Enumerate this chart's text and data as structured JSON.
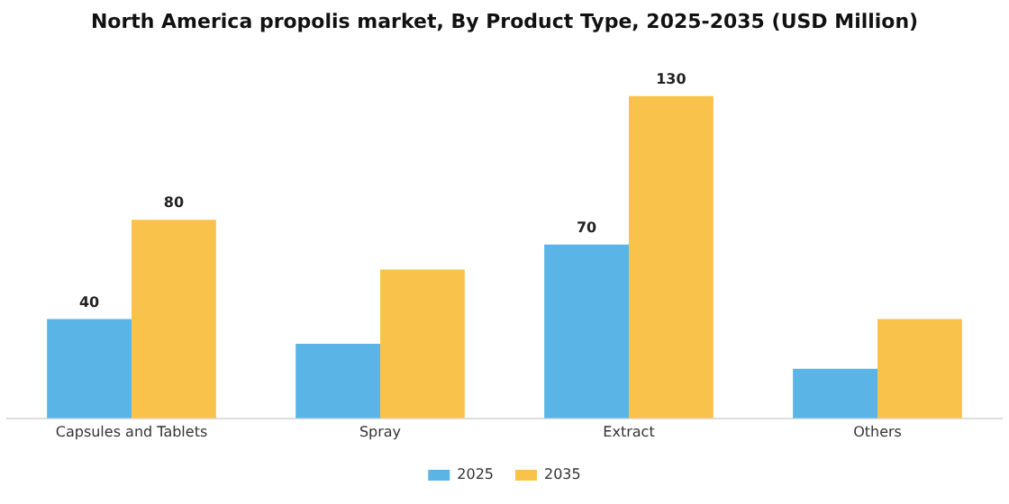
{
  "chart_data": {
    "type": "bar",
    "title": "North America propolis market, By Product Type, 2025-2035 (USD Million)",
    "categories": [
      "Capsules and Tablets",
      "Spray",
      "Extract",
      "Others"
    ],
    "series": [
      {
        "name": "2025",
        "color": "#5ab4e5",
        "values": [
          40,
          30,
          70,
          20
        ],
        "value_labels": [
          "40",
          null,
          "70",
          null
        ]
      },
      {
        "name": "2035",
        "color": "#f9c24a",
        "values": [
          80,
          60,
          130,
          40
        ],
        "value_labels": [
          "80",
          null,
          "130",
          null
        ]
      }
    ],
    "ylim": [
      0,
      130
    ],
    "tick_labels": "x",
    "grid": false,
    "legend": "bottom"
  }
}
